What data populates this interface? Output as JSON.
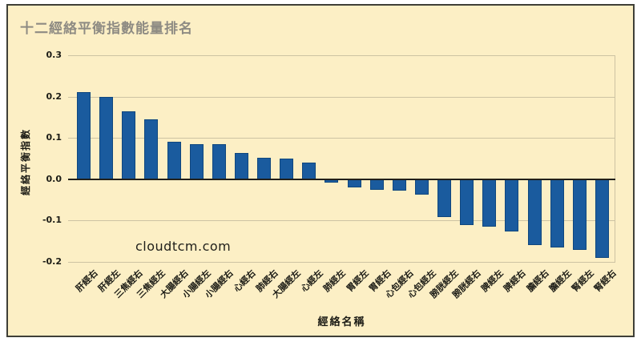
{
  "colors": {
    "page_background": "#ffffff",
    "card_background": "#fcefc5",
    "card_border": "#3f3f37",
    "bar_fill": "#1a5b9e",
    "bar_border": "#10477e",
    "gridline": "#cdc3a3",
    "zero_line": "#22201a",
    "text": "#1b1b15",
    "title_color": "#8e8b83"
  },
  "watermark": "cloudtcm.com",
  "chart_data": {
    "type": "bar",
    "title": "十二經絡平衡指數能量排名",
    "xlabel": "經絡名稱",
    "ylabel": "經絡平衡指數",
    "categories": [
      "肝經右",
      "肝經左",
      "三焦經右",
      "三焦經左",
      "大腸經右",
      "小腸經左",
      "小腸經右",
      "心經右",
      "肺經右",
      "大腸經左",
      "心經左",
      "肺經左",
      "胃經左",
      "胃經右",
      "心包經右",
      "心包經左",
      "膀胱經左",
      "膀胱經右",
      "脾經左",
      "脾經右",
      "膽經右",
      "膽經左",
      "腎經左",
      "腎經右"
    ],
    "values": [
      0.21,
      0.2,
      0.165,
      0.145,
      0.09,
      0.085,
      0.085,
      0.063,
      0.052,
      0.05,
      0.04,
      -0.008,
      -0.02,
      -0.025,
      -0.027,
      -0.037,
      -0.092,
      -0.11,
      -0.115,
      -0.127,
      -0.16,
      -0.165,
      -0.17,
      -0.19
    ],
    "yticks": [
      0.3,
      0.2,
      0.1,
      0.0,
      -0.1,
      -0.2
    ],
    "ylim": [
      -0.2,
      0.3
    ],
    "grid": true,
    "legend": false,
    "xtick_rotation": 45
  }
}
